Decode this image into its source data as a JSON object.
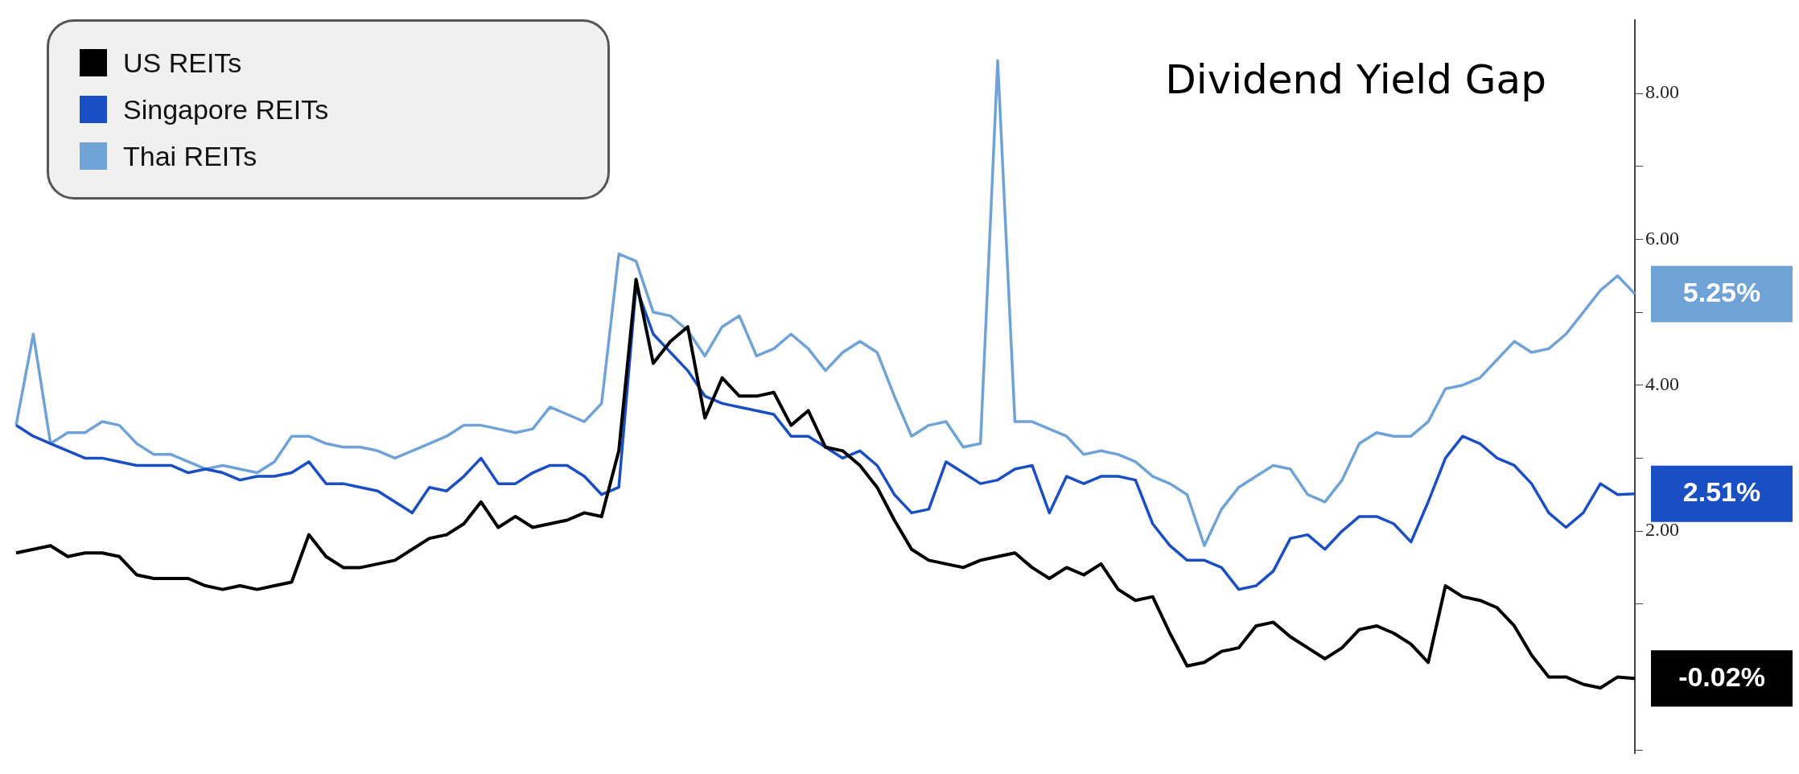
{
  "chart_data": {
    "type": "line",
    "title": "Dividend Yield Gap",
    "categories": [
      null,
      null,
      null,
      null,
      null,
      null,
      null,
      null,
      null,
      null,
      null,
      null,
      null,
      null,
      null,
      null,
      null,
      null,
      null,
      null,
      null,
      null,
      null,
      null,
      null,
      null,
      null,
      null,
      null,
      null,
      null,
      null,
      null,
      null,
      null,
      null,
      null,
      null,
      null,
      null,
      null,
      null,
      null,
      null,
      null,
      null,
      null,
      null,
      null,
      null,
      null,
      null,
      null,
      null,
      null,
      null,
      null,
      null,
      null,
      null,
      null,
      null,
      null,
      null,
      null,
      null,
      null,
      null,
      null,
      null,
      null,
      null,
      null,
      null,
      null,
      null,
      null,
      null,
      null,
      null,
      null,
      null,
      null,
      null,
      null,
      null,
      null,
      null,
      null,
      null,
      null,
      null,
      null,
      null,
      null
    ],
    "tick_labels": "y",
    "grid": false,
    "legend": "top left",
    "marker": "none",
    "ylim": [
      -1.05,
      9
    ],
    "yticks": [
      {
        "value": -1,
        "label": null
      },
      {
        "value": 1,
        "label": null
      },
      {
        "value": 2,
        "label": "2.00"
      },
      {
        "value": 3,
        "label": null
      },
      {
        "value": 4,
        "label": "4.00"
      },
      {
        "value": 5,
        "label": null
      },
      {
        "value": 6,
        "label": "6.00"
      },
      {
        "value": 7,
        "label": null
      },
      {
        "value": 8,
        "label": "8.00"
      }
    ],
    "series": [
      {
        "name": "US REITs",
        "color": "#000000",
        "values": [
          1.7,
          1.75,
          1.8,
          1.65,
          1.7,
          1.7,
          1.65,
          1.4,
          1.35,
          1.35,
          1.35,
          1.25,
          1.2,
          1.25,
          1.2,
          1.25,
          1.3,
          1.95,
          1.65,
          1.5,
          1.5,
          1.55,
          1.6,
          1.75,
          1.9,
          1.95,
          2.1,
          2.4,
          2.05,
          2.2,
          2.05,
          2.1,
          2.15,
          2.25,
          2.2,
          3.1,
          5.45,
          4.3,
          4.6,
          4.8,
          3.55,
          4.1,
          3.85,
          3.85,
          3.9,
          3.45,
          3.65,
          3.15,
          3.1,
          2.9,
          2.6,
          2.15,
          1.75,
          1.6,
          1.55,
          1.5,
          1.6,
          1.65,
          1.7,
          1.5,
          1.35,
          1.5,
          1.4,
          1.55,
          1.2,
          1.05,
          1.1,
          0.6,
          0.15,
          0.2,
          0.35,
          0.4,
          0.7,
          0.75,
          0.55,
          0.4,
          0.25,
          0.4,
          0.65,
          0.7,
          0.6,
          0.45,
          0.2,
          1.25,
          1.1,
          1.05,
          0.95,
          0.7,
          0.3,
          0.0,
          0.0,
          -0.1,
          -0.15,
          0.0,
          -0.02
        ]
      },
      {
        "name": "Singapore REITs",
        "color": "#1a4fc4",
        "values": [
          3.45,
          3.3,
          3.2,
          3.1,
          3.0,
          3.0,
          2.95,
          2.9,
          2.9,
          2.9,
          2.8,
          2.85,
          2.8,
          2.7,
          2.75,
          2.75,
          2.8,
          2.95,
          2.65,
          2.65,
          2.6,
          2.55,
          2.4,
          2.25,
          2.6,
          2.55,
          2.75,
          3.0,
          2.65,
          2.65,
          2.8,
          2.9,
          2.9,
          2.75,
          2.5,
          2.6,
          5.35,
          4.7,
          4.45,
          4.2,
          3.85,
          3.75,
          3.7,
          3.65,
          3.6,
          3.3,
          3.3,
          3.15,
          3.0,
          3.1,
          2.9,
          2.5,
          2.25,
          2.3,
          2.95,
          2.8,
          2.65,
          2.7,
          2.85,
          2.9,
          2.25,
          2.75,
          2.65,
          2.75,
          2.75,
          2.7,
          2.1,
          1.8,
          1.6,
          1.6,
          1.5,
          1.2,
          1.25,
          1.45,
          1.9,
          1.95,
          1.75,
          2.0,
          2.2,
          2.2,
          2.1,
          1.85,
          2.4,
          3.0,
          3.3,
          3.2,
          3.0,
          2.9,
          2.65,
          2.25,
          2.05,
          2.25,
          2.65,
          2.5,
          2.51
        ]
      },
      {
        "name": "Thai REITs",
        "color": "#6fa3d8",
        "values": [
          3.45,
          4.7,
          3.2,
          3.35,
          3.35,
          3.5,
          3.45,
          3.2,
          3.05,
          3.05,
          2.95,
          2.85,
          2.9,
          2.85,
          2.8,
          2.95,
          3.3,
          3.3,
          3.2,
          3.15,
          3.15,
          3.1,
          3.0,
          3.1,
          3.2,
          3.3,
          3.45,
          3.45,
          3.4,
          3.35,
          3.4,
          3.7,
          3.6,
          3.5,
          3.75,
          5.8,
          5.7,
          5.0,
          4.95,
          4.75,
          4.4,
          4.8,
          4.95,
          4.4,
          4.5,
          4.7,
          4.5,
          4.2,
          4.45,
          4.6,
          4.45,
          3.85,
          3.3,
          3.45,
          3.5,
          3.15,
          3.2,
          8.45,
          3.5,
          3.5,
          3.4,
          3.3,
          3.05,
          3.1,
          3.05,
          2.95,
          2.75,
          2.65,
          2.5,
          1.8,
          2.3,
          2.6,
          2.75,
          2.9,
          2.85,
          2.5,
          2.4,
          2.7,
          3.2,
          3.35,
          3.3,
          3.3,
          3.5,
          3.95,
          4.0,
          4.1,
          4.35,
          4.6,
          4.45,
          4.5,
          4.7,
          5.0,
          5.3,
          5.5,
          5.25
        ]
      }
    ],
    "annotations": [
      "-0.02%",
      "2.51%",
      "5.25%"
    ]
  }
}
